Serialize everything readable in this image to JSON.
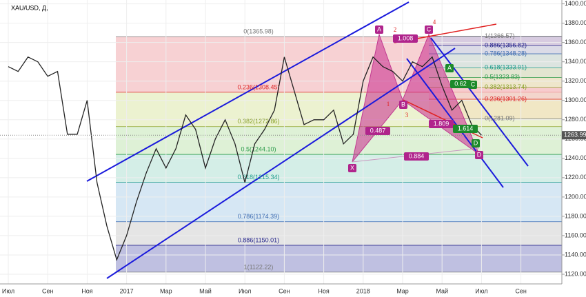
{
  "chart_data": {
    "type": "line",
    "title": "XAU/USD, Д,",
    "categories": [
      "Июл",
      null,
      null,
      null,
      "Сен",
      null,
      null,
      null,
      "Ноя",
      null,
      null,
      null,
      "2017",
      null,
      null,
      null,
      "Мар",
      null,
      null,
      null,
      "Май",
      null,
      null,
      null,
      "Июл",
      null,
      null,
      null,
      "Сен",
      null,
      null,
      null,
      "Ноя",
      null,
      null,
      null,
      "2018",
      null,
      null,
      null,
      "Мар",
      null,
      null,
      null,
      "Май",
      null,
      null,
      null,
      "Июл",
      null,
      null,
      null,
      "Сен"
    ],
    "values": [
      1335,
      1330,
      1345,
      1340,
      1325,
      1330,
      1265,
      1265,
      1300,
      1215,
      1170,
      1135,
      1160,
      1195,
      1225,
      1250,
      1230,
      1250,
      1285,
      1270,
      1230,
      1260,
      1280,
      1255,
      1215,
      1255,
      1270,
      1290,
      1345,
      1310,
      1275,
      1280,
      1280,
      1290,
      1255,
      1265,
      1320,
      1345,
      1335,
      1330,
      1320,
      1340,
      1335,
      1345,
      1315,
      1290,
      1300,
      1275,
      1263.99,
      null,
      null,
      null,
      null
    ],
    "color": "#222222",
    "last_price": 1263.99,
    "ylim": [
      1110,
      1404
    ],
    "yticks": [
      {
        "value": 1120,
        "label": "1120.00"
      },
      {
        "value": 1140,
        "label": "1140.00"
      },
      {
        "value": 1160,
        "label": "1160.00"
      },
      {
        "value": 1180,
        "label": "1180.00"
      },
      {
        "value": 1200,
        "label": "1200.00"
      },
      {
        "value": 1220,
        "label": "1220.00"
      },
      {
        "value": 1240,
        "label": "1240.00"
      },
      {
        "value": 1260,
        "label": "1260.00"
      },
      {
        "value": 1280,
        "label": "1280.00"
      },
      {
        "value": 1300,
        "label": "1300.00"
      },
      {
        "value": 1320,
        "label": "1320.00"
      },
      {
        "value": 1340,
        "label": "1340.00"
      },
      {
        "value": 1360,
        "label": "1360.00"
      },
      {
        "value": 1380,
        "label": "1380.00"
      },
      {
        "value": 1400,
        "label": "1400.00"
      }
    ],
    "grid": true,
    "fib_left": [
      {
        "value": 1365.98,
        "label": "0(1365.98)"
      },
      {
        "value": 1308.45,
        "label": "0.236(1308.45)"
      },
      {
        "value": 1272.86,
        "label": "0.382(1272.86)"
      },
      {
        "value": 1244.1,
        "label": "0.5(1244.10)"
      },
      {
        "value": 1215.34,
        "label": "0.618(1215.34)"
      },
      {
        "value": 1174.39,
        "label": "0.786(1174.39)"
      },
      {
        "value": 1150.01,
        "label": "0.886(1150.01)"
      },
      {
        "value": 1122.22,
        "label": "1(1122.22)"
      }
    ],
    "fib_right": [
      {
        "value": 1366.57,
        "label": "1(1366.57)"
      },
      {
        "value": 1356.82,
        "label": "0.886(1356.82)"
      },
      {
        "value": 1348.28,
        "label": "0.786(1348.28)"
      },
      {
        "value": 1333.91,
        "label": "0.618(1333.91)"
      },
      {
        "value": 1323.83,
        "label": "0.5(1323.83)"
      },
      {
        "value": 1313.74,
        "label": "0.382(1313.74)"
      },
      {
        "value": 1301.26,
        "label": "0.236(1301.26)"
      },
      {
        "value": 1281.09,
        "label": "0(1281.09)"
      }
    ],
    "annotations": [
      "X",
      "A",
      "B",
      "C",
      "D",
      "1",
      "2",
      "3",
      "4",
      "0.487",
      "0.884",
      "1.008",
      "1.809",
      "1.614",
      "0.62",
      "A",
      "C",
      "D"
    ]
  }
}
